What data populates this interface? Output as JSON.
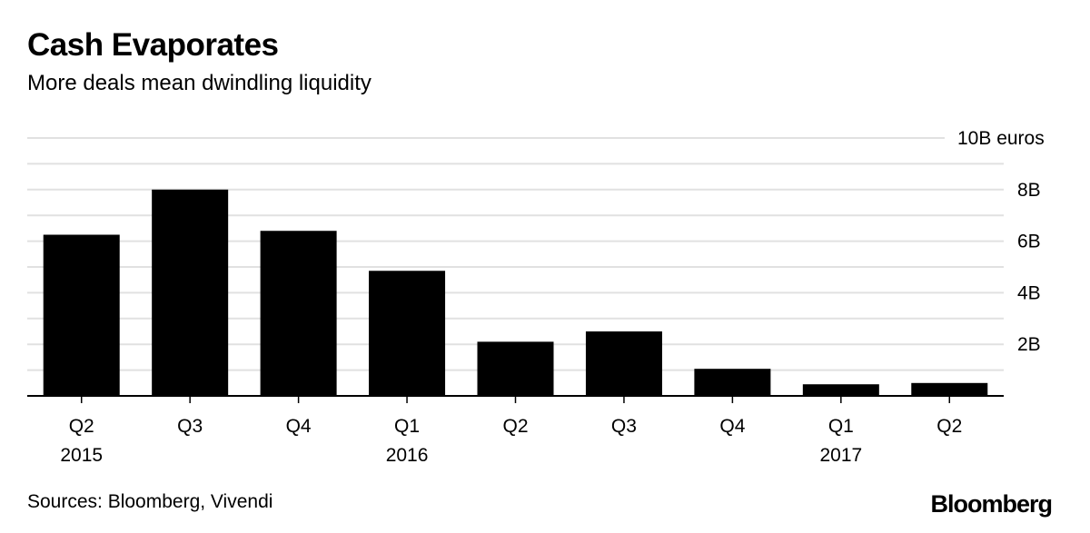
{
  "title": "Cash Evaporates",
  "subtitle": "More deals mean dwindling liquidity",
  "source": "Sources: Bloomberg, Vivendi",
  "brand": "Bloomberg",
  "colors": {
    "bar": "#000000",
    "grid": "#e1e1e1",
    "axis": "#000000"
  },
  "chart_data": {
    "type": "bar",
    "title": "Cash Evaporates",
    "subtitle": "More deals mean dwindling liquidity",
    "categories": [
      "Q2",
      "Q3",
      "Q4",
      "Q1",
      "Q2",
      "Q3",
      "Q4",
      "Q1",
      "Q2"
    ],
    "year_labels": [
      "2015",
      "",
      "",
      "2016",
      "",
      "",
      "",
      "2017",
      ""
    ],
    "values": [
      6.25,
      8.0,
      6.4,
      4.85,
      2.1,
      2.5,
      1.05,
      0.45,
      0.5
    ],
    "ylim": [
      0,
      10
    ],
    "yticks": [
      {
        "value": 10,
        "label": "10B euros"
      },
      {
        "value": 8,
        "label": "8B"
      },
      {
        "value": 6,
        "label": "6B"
      },
      {
        "value": 4,
        "label": "4B"
      },
      {
        "value": 2,
        "label": "2B"
      }
    ],
    "gridlines": [
      1,
      2,
      3,
      4,
      5,
      6,
      7,
      8,
      9,
      10
    ],
    "ylabel": "",
    "xlabel": "",
    "grid": true,
    "legend": "none"
  }
}
